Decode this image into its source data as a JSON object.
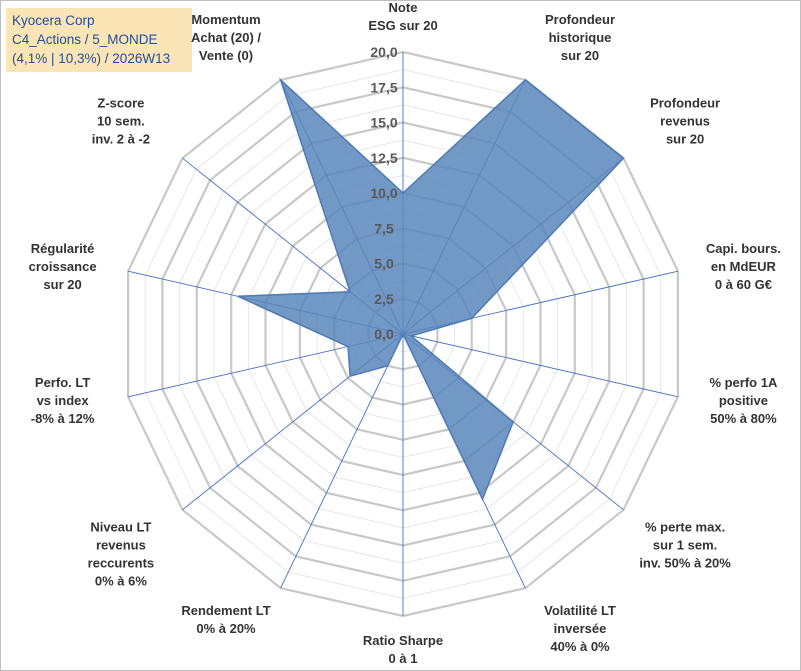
{
  "info": {
    "line1": "Kyocera Corp",
    "line2": "C4_Actions / 5_MONDE",
    "line3": "(4,1% | 10,3%) / 2026W13"
  },
  "colors": {
    "fill": "#5b87bb",
    "stroke": "#4d7bb5",
    "grid_major": "#c8c8c8",
    "grid_minor": "#e6e6e6",
    "spoke": "#4472c4",
    "info_bg": "#fbe5b6",
    "info_text": "#1f4e9c"
  },
  "chart_data": {
    "type": "radar",
    "title": "",
    "rmin": 0,
    "rmax": 20,
    "ticks": [
      "0,0",
      "2,5",
      "5,0",
      "7,5",
      "10,0",
      "12,5",
      "15,0",
      "17,5",
      "20,0"
    ],
    "tick_values": [
      0,
      2.5,
      5,
      7.5,
      10,
      12.5,
      15,
      17.5,
      20
    ],
    "minor_step": 1.25,
    "categories": [
      [
        "Note",
        "ESG sur 20"
      ],
      [
        "Profondeur",
        "historique",
        "sur 20"
      ],
      [
        "Profondeur",
        "revenus",
        "sur 20"
      ],
      [
        "Capi. bours.",
        "en MdEUR",
        "0 à 60 G€"
      ],
      [
        "% perfo 1A",
        "positive",
        "50% à 80%"
      ],
      [
        "% perte max.",
        "sur 1 sem.",
        "inv. 50% à 20%"
      ],
      [
        "Volatilité LT",
        "inversée",
        "40% à 0%"
      ],
      [
        "Ratio Sharpe",
        "0 à 1"
      ],
      [
        "Rendement LT",
        "0% à 20%"
      ],
      [
        "Niveau LT",
        "revenus",
        "reccurents",
        "0% à 6%"
      ],
      [
        "Perfo. LT",
        "vs index",
        "-8% à 12%"
      ],
      [
        "Régularité",
        "croissance",
        "sur 20"
      ],
      [
        "Z-score",
        "10 sem.",
        "inv. 2 à -2"
      ],
      [
        "Momentum",
        "Achat (20) /",
        "Vente (0)"
      ]
    ],
    "series": [
      {
        "name": "Kyocera Corp",
        "values": [
          10.0,
          20.0,
          20.0,
          5.0,
          0.6,
          10.0,
          13.0,
          0.0,
          2.5,
          4.8,
          4.0,
          12.0,
          4.8,
          20.0
        ]
      }
    ]
  }
}
